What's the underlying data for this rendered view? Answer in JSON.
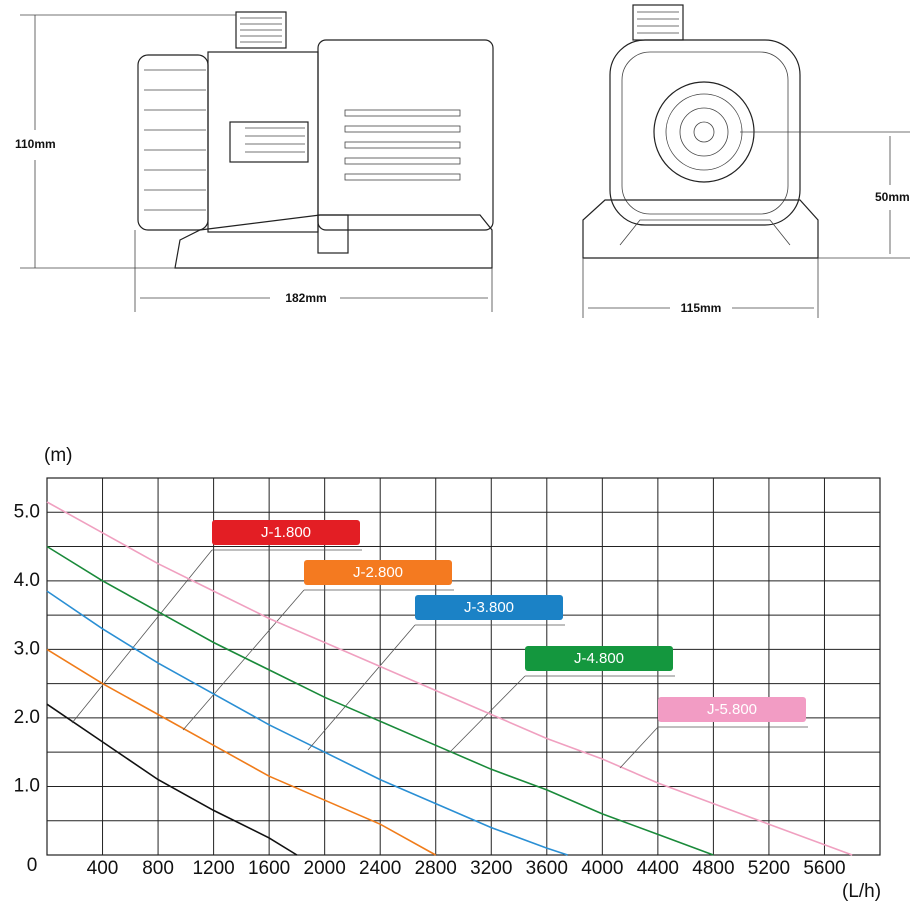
{
  "dimensions": {
    "height": "110mm",
    "length": "182mm",
    "width": "115mm",
    "outlet_height": "50mm"
  },
  "chart_data": {
    "type": "line",
    "ylabel": "(m)",
    "xlabel": "(L/h)",
    "xlim": [
      0,
      6000
    ],
    "ylim": [
      0,
      5.5
    ],
    "xticks": [
      0,
      400,
      800,
      1200,
      1600,
      2000,
      2400,
      2800,
      3200,
      3600,
      4000,
      4400,
      4800,
      5200,
      5600
    ],
    "xgrid": [
      400,
      800,
      1200,
      1600,
      2000,
      2400,
      2800,
      3200,
      3600,
      4000,
      4400,
      4800,
      5200,
      5600,
      6000
    ],
    "yticks": [
      0,
      {
        "value": 1,
        "label": "1.0"
      },
      {
        "value": 2,
        "label": "2.0"
      },
      {
        "value": 3,
        "label": "3.0"
      },
      {
        "value": 4,
        "label": "4.0"
      },
      {
        "value": 5,
        "label": "5.0"
      }
    ],
    "ygrid": [
      0.5,
      1,
      1.5,
      2,
      2.5,
      3,
      3.5,
      4,
      4.5,
      5,
      5.5
    ],
    "grid": true,
    "series": [
      {
        "name": "J-1.800",
        "color": "#111111",
        "label_color": "#e31e24",
        "x": [
          0,
          400,
          800,
          1200,
          1600,
          1800
        ],
        "values": [
          2.2,
          1.65,
          1.1,
          0.65,
          0.25,
          0
        ]
      },
      {
        "name": "J-2.800",
        "color": "#f07c1a",
        "label_color": "#f47a20",
        "x": [
          0,
          400,
          800,
          1200,
          1600,
          2000,
          2400,
          2800
        ],
        "values": [
          3.0,
          2.5,
          2.05,
          1.6,
          1.15,
          0.8,
          0.45,
          0
        ]
      },
      {
        "name": "J-3.800",
        "color": "#2a8fd4",
        "label_color": "#1b82c6",
        "x": [
          0,
          400,
          800,
          1200,
          1600,
          2000,
          2400,
          2800,
          3200,
          3600,
          3750
        ],
        "values": [
          3.85,
          3.3,
          2.8,
          2.35,
          1.9,
          1.5,
          1.1,
          0.75,
          0.4,
          0.1,
          0
        ]
      },
      {
        "name": "J-4.800",
        "color": "#1a8a3a",
        "label_color": "#14973e",
        "x": [
          0,
          400,
          800,
          1200,
          1600,
          2000,
          2400,
          2800,
          3200,
          3600,
          4000,
          4400,
          4800
        ],
        "values": [
          4.5,
          4.0,
          3.55,
          3.1,
          2.7,
          2.3,
          1.95,
          1.6,
          1.25,
          0.95,
          0.6,
          0.3,
          0
        ]
      },
      {
        "name": "J-5.800",
        "color": "#f0a0c0",
        "label_color": "#f29cc4",
        "x": [
          0,
          400,
          800,
          1200,
          1600,
          2000,
          2400,
          2800,
          3200,
          3600,
          4000,
          4400,
          4800,
          5200,
          5600,
          5800
        ],
        "values": [
          5.15,
          4.7,
          4.25,
          3.85,
          3.45,
          3.1,
          2.75,
          2.4,
          2.05,
          1.7,
          1.4,
          1.05,
          0.75,
          0.45,
          0.15,
          0
        ]
      }
    ]
  }
}
